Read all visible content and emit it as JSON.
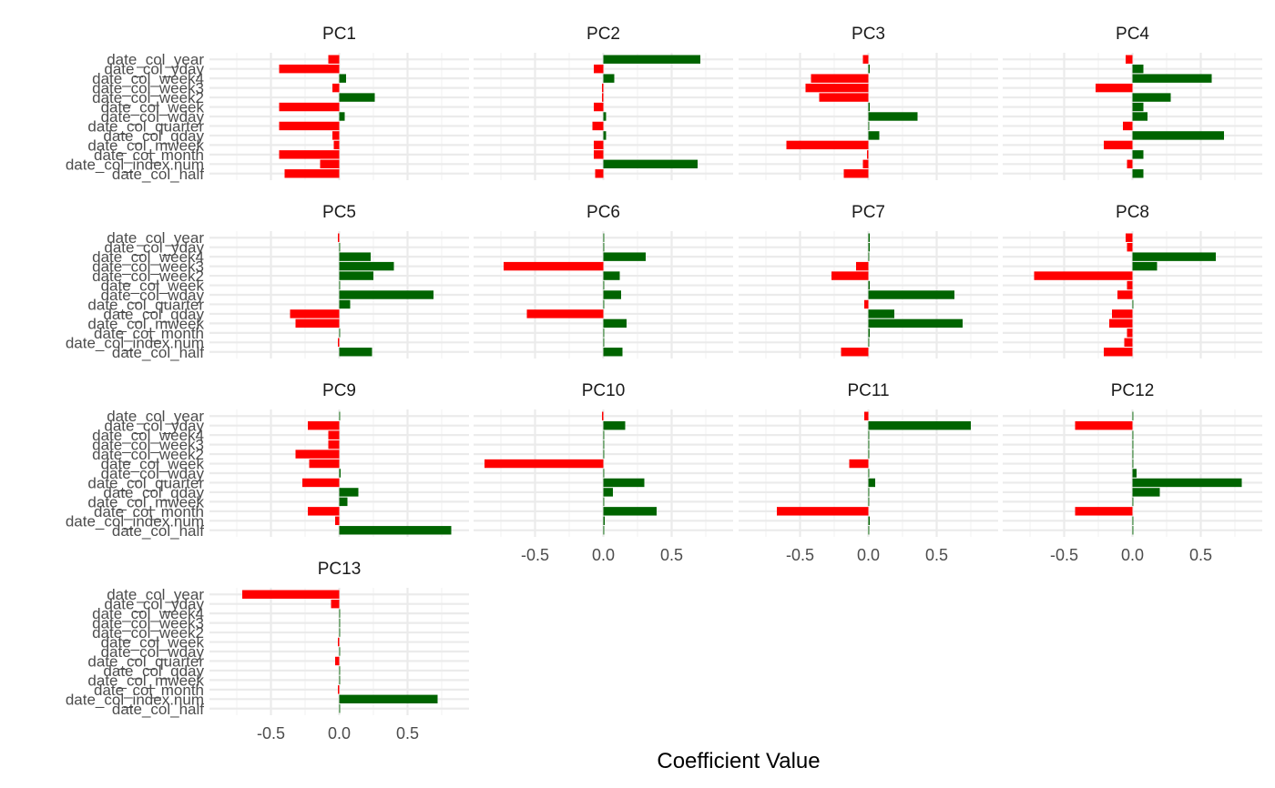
{
  "chart_data": {
    "type": "bar",
    "orientation": "horizontal",
    "layout": "facet-wrap",
    "ncol": 4,
    "xlabel": "Coefficient Value",
    "xlim": [
      -0.95,
      0.95
    ],
    "xticks": [
      -0.5,
      0.0,
      0.5
    ],
    "xtick_labels": [
      "-0.5",
      "0.0",
      "0.5"
    ],
    "grid": true,
    "colors": {
      "positive": "#006400",
      "negative": "#ff0000"
    },
    "categories": [
      "date_col_year",
      "date_col_yday",
      "date_col_week4",
      "date_col_week3",
      "date_col_week2",
      "date_col_week",
      "date_col_wday",
      "date_col_quarter",
      "date_col_qday",
      "date_col_mweek",
      "date_col_month",
      "date_col_index.num",
      "date_col_half"
    ],
    "panels": [
      {
        "title": "PC1",
        "values": [
          -0.08,
          -0.44,
          0.05,
          -0.05,
          0.26,
          -0.44,
          0.04,
          -0.44,
          -0.05,
          -0.04,
          -0.44,
          -0.14,
          -0.4
        ]
      },
      {
        "title": "PC2",
        "values": [
          0.71,
          -0.07,
          0.08,
          -0.01,
          -0.01,
          -0.07,
          0.02,
          -0.08,
          0.02,
          -0.07,
          -0.07,
          0.69,
          -0.06
        ]
      },
      {
        "title": "PC3",
        "values": [
          -0.04,
          0.01,
          -0.42,
          -0.46,
          -0.36,
          0.01,
          0.36,
          0.0,
          0.08,
          -0.6,
          -0.01,
          -0.04,
          -0.18
        ]
      },
      {
        "title": "PC4",
        "values": [
          -0.05,
          0.08,
          0.58,
          -0.27,
          0.28,
          0.08,
          0.11,
          -0.07,
          0.67,
          -0.21,
          0.08,
          -0.04,
          0.08
        ]
      },
      {
        "title": "PC5",
        "values": [
          -0.01,
          0.0,
          0.23,
          0.4,
          0.25,
          0.0,
          0.69,
          0.08,
          -0.36,
          -0.32,
          0.0,
          -0.01,
          0.24
        ]
      },
      {
        "title": "PC6",
        "values": [
          0.0,
          0.0,
          0.31,
          -0.73,
          0.12,
          0.0,
          0.13,
          0.0,
          -0.56,
          0.17,
          0.0,
          0.0,
          0.14
        ]
      },
      {
        "title": "PC7",
        "values": [
          0.01,
          0.01,
          0.0,
          -0.09,
          -0.27,
          0.01,
          0.63,
          -0.03,
          0.19,
          0.69,
          0.01,
          0.0,
          -0.2
        ]
      },
      {
        "title": "PC8",
        "values": [
          -0.05,
          -0.04,
          0.61,
          0.18,
          -0.72,
          -0.04,
          -0.11,
          0.0,
          -0.15,
          -0.17,
          -0.04,
          -0.06,
          -0.21
        ]
      },
      {
        "title": "PC9",
        "values": [
          0.0,
          -0.23,
          -0.08,
          -0.08,
          -0.32,
          -0.22,
          0.01,
          -0.27,
          0.14,
          0.06,
          -0.23,
          -0.03,
          0.82
        ]
      },
      {
        "title": "PC10",
        "values": [
          -0.01,
          0.16,
          0.0,
          0.0,
          0.0,
          -0.87,
          0.0,
          0.3,
          0.07,
          0.0,
          0.39,
          0.01,
          0.0
        ]
      },
      {
        "title": "PC11",
        "values": [
          -0.03,
          0.75,
          0.0,
          0.0,
          0.0,
          -0.14,
          0.0,
          0.05,
          0.0,
          0.0,
          -0.67,
          0.01,
          0.0
        ]
      },
      {
        "title": "PC12",
        "values": [
          0.0,
          -0.42,
          0.0,
          0.0,
          0.0,
          0.0,
          0.03,
          0.8,
          0.2,
          0.0,
          -0.42,
          0.0,
          0.0
        ]
      },
      {
        "title": "PC13",
        "values": [
          -0.71,
          -0.06,
          0.0,
          0.0,
          0.0,
          -0.01,
          0.0,
          -0.03,
          0.0,
          0.0,
          -0.01,
          0.72,
          0.0
        ]
      }
    ]
  }
}
